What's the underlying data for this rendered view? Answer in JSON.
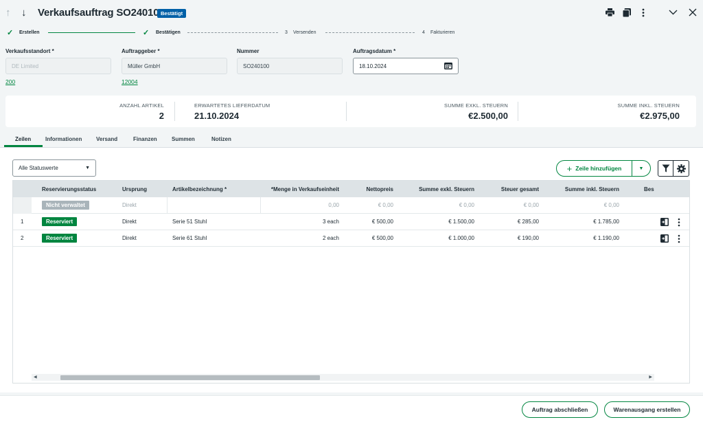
{
  "header": {
    "title": "Verkaufsauftrag SO240100",
    "status_badge": "Bestätigt"
  },
  "stepper": [
    {
      "label": "Erstellen",
      "state": "done"
    },
    {
      "label": "Bestätigen",
      "state": "done"
    },
    {
      "number": "3",
      "label": "Versenden",
      "state": "todo"
    },
    {
      "number": "4",
      "label": "Fakturieren",
      "state": "todo"
    }
  ],
  "fields": {
    "standort": {
      "label": "Verkaufsstandort *",
      "value": "DE Limited",
      "link": "200"
    },
    "auftraggeber": {
      "label": "Auftraggeber *",
      "value": "Müller GmbH",
      "link": "12004"
    },
    "nummer": {
      "label": "Nummer",
      "value": "SO240100"
    },
    "datum": {
      "label": "Auftragsdatum *",
      "value": "18.10.2024"
    }
  },
  "summary": {
    "anzahl": {
      "label": "ANZAHL ARTIKEL",
      "value": "2"
    },
    "lieferdatum": {
      "label": "ERWARTETES LIEFERDATUM",
      "value": "21.10.2024"
    },
    "exkl": {
      "label": "SUMME EXKL. STEUERN",
      "value": "€2.500,00"
    },
    "inkl": {
      "label": "SUMME INKL. STEUERN",
      "value": "€2.975,00"
    }
  },
  "tabs": [
    "Zeilen",
    "Informationen",
    "Versand",
    "Finanzen",
    "Summen",
    "Notizen"
  ],
  "toolbar": {
    "status_filter": "Alle Statuswerte",
    "add_line": "Zeile hinzufügen"
  },
  "table": {
    "headers": [
      "Reservierungsstatus",
      "Ursprung",
      "Artikelbezeichnung *",
      "*Menge in Verkaufseinheit",
      "Nettopreis",
      "Summe exkl. Steuern",
      "Steuer gesamt",
      "Summe inkl. Steuern",
      "Bes"
    ],
    "rows": [
      {
        "num": "",
        "status": "Nicht verwaltet",
        "status_color": "#a9b4ba",
        "origin": "Direkt",
        "article": "",
        "qty": "0,00",
        "net": "€ 0,00",
        "excl": "€ 0,00",
        "tax": "€ 0,00",
        "incl": "€ 0,00"
      },
      {
        "num": "1",
        "status": "Reserviert",
        "status_color": "#00853f",
        "origin": "Direkt",
        "article": "Serie 51 Stuhl",
        "qty": "3 each",
        "net": "€ 500,00",
        "excl": "€ 1.500,00",
        "tax": "€ 285,00",
        "incl": "€ 1.785,00"
      },
      {
        "num": "2",
        "status": "Reserviert",
        "status_color": "#00853f",
        "origin": "Direkt",
        "article": "Serie 61 Stuhl",
        "qty": "2 each",
        "net": "€ 500,00",
        "excl": "€ 1.000,00",
        "tax": "€ 190,00",
        "incl": "€ 1.190,00"
      }
    ]
  },
  "footer": {
    "close_order": "Auftrag abschließen",
    "create_shipment": "Warenausgang erstellen"
  },
  "colors": {
    "accent": "#00853f",
    "badge": "#0060a7"
  }
}
